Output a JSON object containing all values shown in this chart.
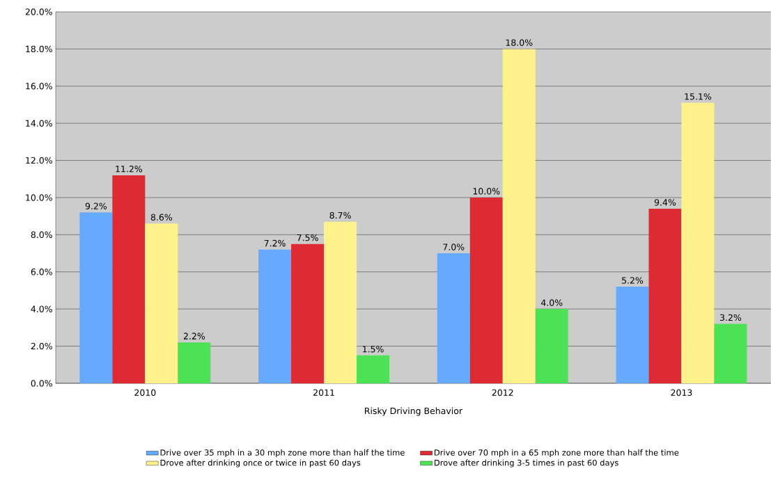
{
  "chart_data": {
    "type": "bar",
    "xlabel": "Risky Driving Behavior",
    "categories": [
      "2010",
      "2011",
      "2012",
      "2013"
    ],
    "series": [
      {
        "name": "Drive over 35 mph in a 30 mph zone more than half the time",
        "color": "#66aaff",
        "values": [
          9.2,
          7.2,
          7.0,
          5.2
        ],
        "value_labels": [
          "9.2%",
          "7.2%",
          "7.0%",
          "5.2%"
        ]
      },
      {
        "name": "Drive over 70 mph in a 65 mph zone more than half the time",
        "color": "#dd2a33",
        "values": [
          11.2,
          7.5,
          10.0,
          9.4
        ],
        "value_labels": [
          "11.2%",
          "7.5%",
          "10.0%",
          "9.4%"
        ]
      },
      {
        "name": "Drove after drinking once or twice in past 60 days",
        "color": "#fff28c",
        "values": [
          8.6,
          8.7,
          18.0,
          15.1
        ],
        "value_labels": [
          "8.6%",
          "8.7%",
          "18.0%",
          "15.1%"
        ]
      },
      {
        "name": "Drove after drinking 3-5 times in past 60 days",
        "color": "#4de256",
        "values": [
          2.2,
          1.5,
          4.0,
          3.2
        ],
        "value_labels": [
          "2.2%",
          "1.5%",
          "4.0%",
          "3.2%"
        ]
      }
    ],
    "ylim": [
      0,
      20
    ],
    "yticks": [
      {
        "value": 0,
        "label": "0.0%"
      },
      {
        "value": 2,
        "label": "2.0%"
      },
      {
        "value": 4,
        "label": "4.0%"
      },
      {
        "value": 6,
        "label": "6.0%"
      },
      {
        "value": 8,
        "label": "8.0%"
      },
      {
        "value": 10,
        "label": "10.0%"
      },
      {
        "value": 12,
        "label": "12.0%"
      },
      {
        "value": 14,
        "label": "14.0%"
      },
      {
        "value": 16,
        "label": "16.0%"
      },
      {
        "value": 18,
        "label": "18.0%"
      },
      {
        "value": 20,
        "label": "20.0%"
      }
    ],
    "grid": "y",
    "legend": "bottom"
  }
}
